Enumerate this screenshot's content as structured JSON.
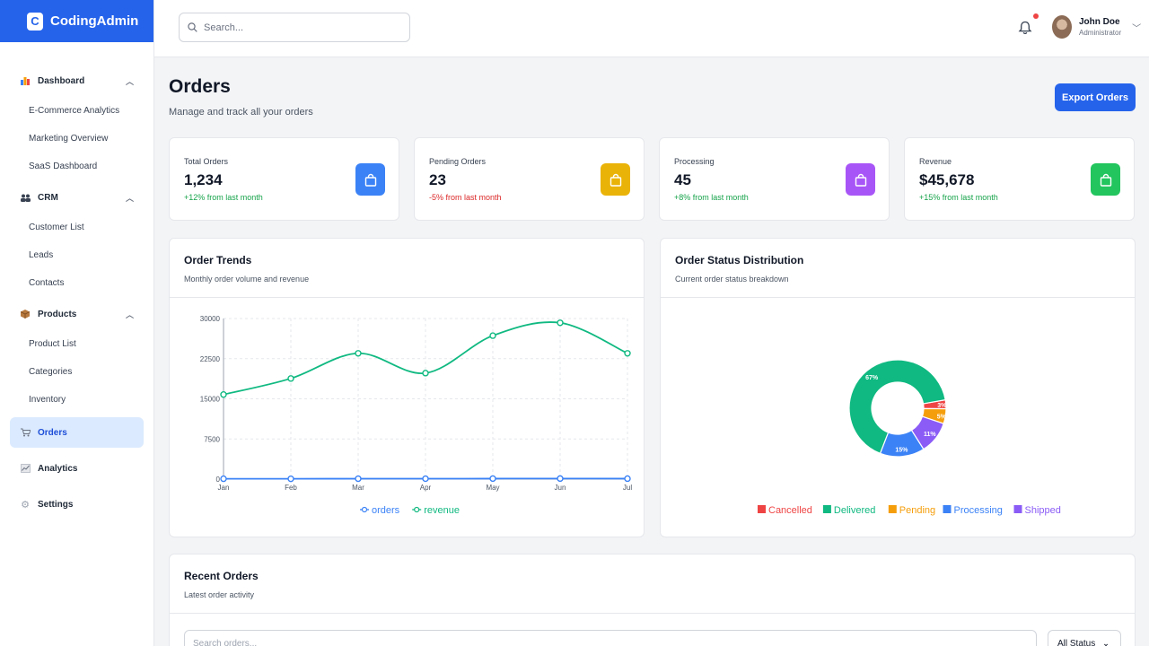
{
  "brand": {
    "mark": "C",
    "name": "CodingAdmin"
  },
  "search": {
    "placeholder": "Search..."
  },
  "user": {
    "name": "John Doe",
    "role": "Administrator"
  },
  "sidebar": {
    "groups": [
      {
        "label": "Dashboard",
        "icon": "bar-chart-icon",
        "items": [
          "E-Commerce Analytics",
          "Marketing Overview",
          "SaaS Dashboard"
        ]
      },
      {
        "label": "CRM",
        "icon": "users-icon",
        "items": [
          "Customer List",
          "Leads",
          "Contacts"
        ]
      },
      {
        "label": "Products",
        "icon": "box-icon",
        "items": [
          "Product List",
          "Categories",
          "Inventory"
        ]
      }
    ],
    "items": [
      {
        "label": "Orders",
        "icon": "cart-icon",
        "active": true
      },
      {
        "label": "Analytics",
        "icon": "trend-icon",
        "active": false
      },
      {
        "label": "Settings",
        "icon": "gear-icon",
        "active": false
      }
    ]
  },
  "page": {
    "title": "Orders",
    "subtitle": "Manage and track all your orders",
    "export_label": "Export Orders"
  },
  "stats": [
    {
      "label": "Total Orders",
      "value": "1,234",
      "delta": "+12% from last month",
      "trend": "up",
      "color": "#3b82f6",
      "icon": "shopping-bag-icon"
    },
    {
      "label": "Pending Orders",
      "value": "23",
      "delta": "-5% from last month",
      "trend": "down",
      "color": "#eab308",
      "icon": "shopping-bag-icon"
    },
    {
      "label": "Processing",
      "value": "45",
      "delta": "+8% from last month",
      "trend": "up",
      "color": "#a855f7",
      "icon": "shopping-bag-icon"
    },
    {
      "label": "Revenue",
      "value": "$45,678",
      "delta": "+15% from last month",
      "trend": "up",
      "color": "#22c55e",
      "icon": "shopping-bag-icon"
    }
  ],
  "trends": {
    "title": "Order Trends",
    "subtitle": "Monthly order volume and revenue"
  },
  "distribution": {
    "title": "Order Status Distribution",
    "subtitle": "Current order status breakdown"
  },
  "recent": {
    "title": "Recent Orders",
    "subtitle": "Latest order activity",
    "search_placeholder": "Search orders...",
    "status_filter": "All Status"
  },
  "chart_data": [
    {
      "type": "line",
      "categories": [
        "Jan",
        "Feb",
        "Mar",
        "Apr",
        "May",
        "Jun",
        "Jul"
      ],
      "ylim": [
        0,
        30000
      ],
      "yticks": [
        0,
        7500,
        15000,
        22500,
        30000
      ],
      "grid": true,
      "legend": "bottom",
      "series": [
        {
          "name": "orders",
          "color": "#3b82f6",
          "values": [
            65,
            59,
            80,
            81,
            96,
            105,
            91
          ]
        },
        {
          "name": "revenue",
          "color": "#10b981",
          "values": [
            15800,
            18800,
            23500,
            19800,
            26800,
            29200,
            23500
          ]
        }
      ]
    },
    {
      "type": "pie",
      "donut": true,
      "legend": "bottom",
      "slices": [
        {
          "name": "Cancelled",
          "value": 3,
          "label": "3%",
          "color": "#ef4444"
        },
        {
          "name": "Delivered",
          "value": 67,
          "label": "67%",
          "color": "#10b981"
        },
        {
          "name": "Pending",
          "value": 5,
          "label": "5%",
          "color": "#f59e0b"
        },
        {
          "name": "Processing",
          "value": 15,
          "label": "15%",
          "color": "#3b82f6"
        },
        {
          "name": "Shipped",
          "value": 11,
          "label": "11%",
          "color": "#8b5cf6"
        }
      ]
    }
  ]
}
